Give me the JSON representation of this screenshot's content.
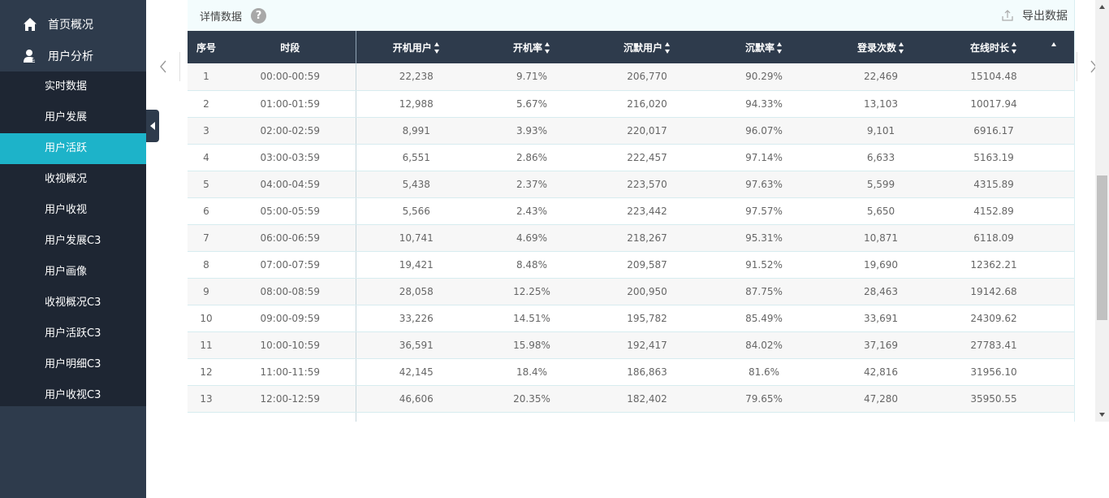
{
  "sidebar": {
    "top_items": [
      {
        "label": "首页概况",
        "icon": "home-icon"
      },
      {
        "label": "用户分析",
        "icon": "user-icon"
      }
    ],
    "sub_items": [
      {
        "label": "实时数据"
      },
      {
        "label": "用户发展"
      },
      {
        "label": "用户活跃",
        "active": true
      },
      {
        "label": "收视概况"
      },
      {
        "label": "用户收视"
      },
      {
        "label": "用户发展C3"
      },
      {
        "label": "用户画像"
      },
      {
        "label": "收视概况C3"
      },
      {
        "label": "用户活跃C3"
      },
      {
        "label": "用户明细C3"
      },
      {
        "label": "用户收视C3"
      }
    ]
  },
  "panel": {
    "title": "详情数据",
    "help_symbol": "?",
    "export_label": "导出数据"
  },
  "table": {
    "columns": [
      "序号",
      "时段",
      "开机用户",
      "开机率",
      "沉默用户",
      "沉默率",
      "登录次数",
      "在线时长"
    ],
    "rows": [
      [
        "1",
        "00:00-00:59",
        "22,238",
        "9.71%",
        "206,770",
        "90.29%",
        "22,469",
        "15104.48"
      ],
      [
        "2",
        "01:00-01:59",
        "12,988",
        "5.67%",
        "216,020",
        "94.33%",
        "13,103",
        "10017.94"
      ],
      [
        "3",
        "02:00-02:59",
        "8,991",
        "3.93%",
        "220,017",
        "96.07%",
        "9,101",
        "6916.17"
      ],
      [
        "4",
        "03:00-03:59",
        "6,551",
        "2.86%",
        "222,457",
        "97.14%",
        "6,633",
        "5163.19"
      ],
      [
        "5",
        "04:00-04:59",
        "5,438",
        "2.37%",
        "223,570",
        "97.63%",
        "5,599",
        "4315.89"
      ],
      [
        "6",
        "05:00-05:59",
        "5,566",
        "2.43%",
        "223,442",
        "97.57%",
        "5,650",
        "4152.89"
      ],
      [
        "7",
        "06:00-06:59",
        "10,741",
        "4.69%",
        "218,267",
        "95.31%",
        "10,871",
        "6118.09"
      ],
      [
        "8",
        "07:00-07:59",
        "19,421",
        "8.48%",
        "209,587",
        "91.52%",
        "19,690",
        "12362.21"
      ],
      [
        "9",
        "08:00-08:59",
        "28,058",
        "12.25%",
        "200,950",
        "87.75%",
        "28,463",
        "19142.68"
      ],
      [
        "10",
        "09:00-09:59",
        "33,226",
        "14.51%",
        "195,782",
        "85.49%",
        "33,691",
        "24309.62"
      ],
      [
        "11",
        "10:00-10:59",
        "36,591",
        "15.98%",
        "192,417",
        "84.02%",
        "37,169",
        "27783.41"
      ],
      [
        "12",
        "11:00-11:59",
        "42,145",
        "18.4%",
        "186,863",
        "81.6%",
        "42,816",
        "31956.10"
      ],
      [
        "13",
        "12:00-12:59",
        "46,606",
        "20.35%",
        "182,402",
        "79.65%",
        "47,280",
        "35950.55"
      ]
    ]
  },
  "colors": {
    "sidebar_bg": "#2e3b4c",
    "submenu_bg": "#1e2633",
    "active_bg": "#1db3c9",
    "header_bg": "#2e3b4c",
    "panel_head_bg": "#f3fcfd"
  }
}
